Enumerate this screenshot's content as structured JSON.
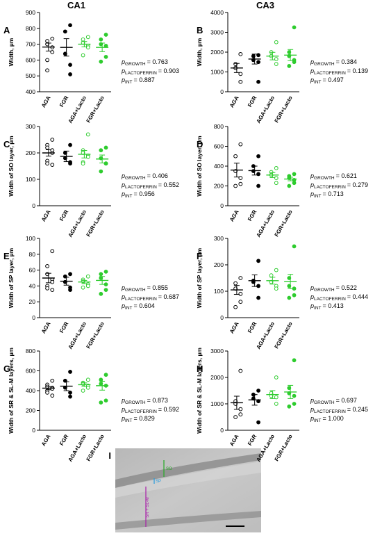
{
  "columns": [
    "CA1",
    "CA3"
  ],
  "chart_data": [
    {
      "type": "dot",
      "panel": "A",
      "ylabel": "Width, µm",
      "categories": [
        "AGA",
        "FGR",
        "AGA+Lacto",
        "FGR+Lacto"
      ],
      "colors": [
        "#000000",
        "#000000",
        "#2ecc2e",
        "#2ecc2e"
      ],
      "filled": [
        false,
        true,
        false,
        true
      ],
      "points": [
        [
          735,
          720,
          700,
          680,
          650,
          600,
          535
        ],
        [
          820,
          780,
          640,
          570,
          510
        ],
        [
          745,
          730,
          710,
          690,
          680,
          630
        ],
        [
          760,
          730,
          700,
          690,
          620,
          590
        ]
      ],
      "means": [
        682,
        680,
        700,
        680
      ],
      "sems": [
        25,
        55,
        17,
        27
      ],
      "ylim": [
        400,
        900
      ],
      "yticks": [
        400,
        500,
        600,
        700,
        800,
        900
      ],
      "stats": [
        {
          "symbol": "p",
          "sub": "GROWTH",
          "value": 0.763,
          "label": "= 0.763"
        },
        {
          "symbol": "p",
          "sub": "LACTOFERRIN",
          "value": 0.903,
          "label": "= 0.903"
        },
        {
          "symbol": "p",
          "sub": "INT",
          "value": 0.887,
          "label": "= 0.887"
        }
      ]
    },
    {
      "type": "dot",
      "panel": "B",
      "ylabel": "Width, µm",
      "categories": [
        "AGA",
        "FGR",
        "AGA+Lacto",
        "FGR+Lacto"
      ],
      "colors": [
        "#000000",
        "#000000",
        "#2ecc2e",
        "#2ecc2e"
      ],
      "filled": [
        false,
        true,
        false,
        true
      ],
      "points": [
        [
          1900,
          1400,
          1200,
          900,
          500
        ],
        [
          1850,
          1800,
          1600,
          1500,
          500
        ],
        [
          2500,
          2000,
          1800,
          1650,
          1400
        ],
        [
          3250,
          2000,
          1800,
          1600,
          1500,
          1300
        ]
      ],
      "means": [
        1200,
        1650,
        1800,
        1850
      ],
      "sems": [
        230,
        250,
        190,
        280
      ],
      "ylim": [
        0,
        4000
      ],
      "yticks": [
        0,
        1000,
        2000,
        3000,
        4000
      ],
      "stats": [
        {
          "symbol": "p",
          "sub": "GROWTH",
          "value": 0.384,
          "label": "= 0.384"
        },
        {
          "symbol": "p",
          "sub": "LACTOFERRIN",
          "value": 0.139,
          "label": "= 0.139"
        },
        {
          "symbol": "p",
          "sub": "INT",
          "value": 0.497,
          "label": "= 0.497"
        }
      ]
    },
    {
      "type": "dot",
      "panel": "C",
      "ylabel": "Width of SO layer, µm",
      "categories": [
        "AGA",
        "FGR",
        "AGA+Lacto",
        "FGR+Lacto"
      ],
      "colors": [
        "#000000",
        "#000000",
        "#2ecc2e",
        "#2ecc2e"
      ],
      "filled": [
        false,
        true,
        false,
        true
      ],
      "points": [
        [
          250,
          230,
          220,
          210,
          200,
          170,
          160,
          155
        ],
        [
          230,
          200,
          180,
          165,
          160
        ],
        [
          270,
          210,
          200,
          190,
          185,
          165,
          160
        ],
        [
          220,
          210,
          180,
          160,
          160,
          130
        ]
      ],
      "means": [
        200,
        187,
        195,
        177
      ],
      "sems": [
        12,
        20,
        14,
        15
      ],
      "ylim": [
        0,
        300
      ],
      "yticks": [
        0,
        100,
        200,
        300
      ],
      "stats": [
        {
          "symbol": "p",
          "sub": "GROWTH",
          "value": 0.406,
          "label": "= 0.406"
        },
        {
          "symbol": "p",
          "sub": "LACTOFERRIN",
          "value": 0.552,
          "label": "= 0.552"
        },
        {
          "symbol": "p",
          "sub": "INT",
          "value": 0.956,
          "label": "= 0.956"
        }
      ]
    },
    {
      "type": "dot",
      "panel": "D",
      "ylabel": "Width of SO layer, µm",
      "categories": [
        "AGA",
        "FGR",
        "AGA+Lacto",
        "FGR+Lacto"
      ],
      "colors": [
        "#000000",
        "#000000",
        "#2ecc2e",
        "#2ecc2e"
      ],
      "filled": [
        false,
        true,
        false,
        true
      ],
      "points": [
        [
          620,
          500,
          350,
          280,
          220,
          200
        ],
        [
          500,
          400,
          350,
          320,
          200
        ],
        [
          380,
          340,
          310,
          280,
          230
        ],
        [
          320,
          300,
          280,
          260,
          230,
          200
        ]
      ],
      "means": [
        360,
        355,
        310,
        270
      ],
      "sems": [
        70,
        45,
        25,
        18
      ],
      "ylim": [
        0,
        800
      ],
      "yticks": [
        0,
        200,
        400,
        600,
        800
      ],
      "stats": [
        {
          "symbol": "p",
          "sub": "GROWTH",
          "value": 0.621,
          "label": "= 0.621"
        },
        {
          "symbol": "p",
          "sub": "LACTOFERRIN",
          "value": 0.279,
          "label": "= 0.279"
        },
        {
          "symbol": "p",
          "sub": "INT",
          "value": 0.713,
          "label": "= 0.713"
        }
      ]
    },
    {
      "type": "dot",
      "panel": "E",
      "ylabel": "Width of SP layer, µm",
      "categories": [
        "AGA",
        "FGR",
        "AGA+Lacto",
        "FGR+Lacto"
      ],
      "colors": [
        "#000000",
        "#000000",
        "#2ecc2e",
        "#2ecc2e"
      ],
      "filled": [
        false,
        true,
        false,
        true
      ],
      "points": [
        [
          84,
          65,
          55,
          48,
          45,
          40,
          37,
          35
        ],
        [
          55,
          52,
          45,
          38,
          35
        ],
        [
          52,
          48,
          46,
          42,
          40,
          38
        ],
        [
          58,
          55,
          50,
          42,
          35,
          30
        ]
      ],
      "means": [
        50,
        46,
        45,
        47
      ],
      "sems": [
        6,
        5,
        2,
        5
      ],
      "ylim": [
        0,
        100
      ],
      "yticks": [
        0,
        20,
        40,
        60,
        80,
        100
      ],
      "stats": [
        {
          "symbol": "p",
          "sub": "GROWTH",
          "value": 0.855,
          "label": "= 0.855"
        },
        {
          "symbol": "p",
          "sub": "LACTOFERRIN",
          "value": 0.687,
          "label": "= 0.687"
        },
        {
          "symbol": "p",
          "sub": "INT",
          "value": 0.604,
          "label": "= 0.604"
        }
      ]
    },
    {
      "type": "dot",
      "panel": "F",
      "ylabel": "Width of SP layer, µm",
      "categories": [
        "AGA",
        "FGR",
        "AGA+Lacto",
        "FGR+Lacto"
      ],
      "colors": [
        "#000000",
        "#000000",
        "#2ecc2e",
        "#2ecc2e"
      ],
      "filled": [
        false,
        true,
        false,
        true
      ],
      "points": [
        [
          150,
          130,
          110,
          90,
          60,
          40
        ],
        [
          215,
          140,
          135,
          120,
          75
        ],
        [
          180,
          160,
          135,
          120,
          110
        ],
        [
          270,
          150,
          120,
          110,
          85,
          75
        ]
      ],
      "means": [
        105,
        140,
        140,
        137
      ],
      "sems": [
        17,
        22,
        13,
        27
      ],
      "ylim": [
        0,
        300
      ],
      "yticks": [
        0,
        100,
        200,
        300
      ],
      "stats": [
        {
          "symbol": "p",
          "sub": "GROWTH",
          "value": 0.522,
          "label": "= 0.522"
        },
        {
          "symbol": "p",
          "sub": "LACTOFERRIN",
          "value": 0.444,
          "label": "= 0.444"
        },
        {
          "symbol": "p",
          "sub": "INT",
          "value": 0.413,
          "label": "= 0.413"
        }
      ]
    },
    {
      "type": "dot",
      "panel": "G",
      "ylabel": "Width of SR & SL-M layers, µm",
      "categories": [
        "AGA",
        "FGR",
        "AGA+Lacto",
        "FGR+Lacto"
      ],
      "colors": [
        "#000000",
        "#000000",
        "#2ecc2e",
        "#2ecc2e"
      ],
      "filled": [
        false,
        true,
        false,
        true
      ],
      "points": [
        [
          500,
          460,
          440,
          430,
          420,
          400,
          380,
          350
        ],
        [
          590,
          500,
          430,
          380,
          340
        ],
        [
          510,
          480,
          470,
          450,
          430,
          400
        ],
        [
          560,
          510,
          470,
          450,
          300,
          280
        ]
      ],
      "means": [
        425,
        445,
        460,
        450
      ],
      "sems": [
        16,
        45,
        18,
        45
      ],
      "ylim": [
        0,
        800
      ],
      "yticks": [
        0,
        200,
        400,
        600,
        800
      ],
      "stats": [
        {
          "symbol": "p",
          "sub": "GROWTH",
          "value": 0.873,
          "label": "= 0.873"
        },
        {
          "symbol": "p",
          "sub": "LACTOFERRIN",
          "value": 0.592,
          "label": "= 0.592"
        },
        {
          "symbol": "p",
          "sub": "INT",
          "value": 0.829,
          "label": "= 0.829"
        }
      ]
    },
    {
      "type": "dot",
      "panel": "H",
      "ylabel": "Width of SR & SL-M layers, µm",
      "categories": [
        "AGA",
        "FGR",
        "AGA+Lacto",
        "FGR+Lacto"
      ],
      "colors": [
        "#000000",
        "#000000",
        "#2ecc2e",
        "#2ecc2e"
      ],
      "filled": [
        false,
        true,
        false,
        true
      ],
      "points": [
        [
          2250,
          1100,
          1000,
          800,
          600,
          500
        ],
        [
          1500,
          1350,
          1200,
          1100,
          300
        ],
        [
          2000,
          1400,
          1300,
          1250,
          1000
        ],
        [
          2650,
          1600,
          1400,
          1300,
          1000,
          900
        ]
      ],
      "means": [
        1040,
        1150,
        1350,
        1450
      ],
      "sems": [
        250,
        200,
        150,
        250
      ],
      "ylim": [
        0,
        3000
      ],
      "yticks": [
        0,
        1000,
        2000,
        3000
      ],
      "stats": [
        {
          "symbol": "p",
          "sub": "GROWTH",
          "value": 0.697,
          "label": "= 0.697"
        },
        {
          "symbol": "p",
          "sub": "LACTOFERRIN",
          "value": 0.245,
          "label": "= 0.245"
        },
        {
          "symbol": "p",
          "sub": "INT",
          "value": 1,
          "label": "= 1.000"
        }
      ]
    }
  ],
  "image_panel": {
    "panel": "I",
    "labels": [
      "SO",
      "SP",
      "SR + SL-M"
    ]
  }
}
